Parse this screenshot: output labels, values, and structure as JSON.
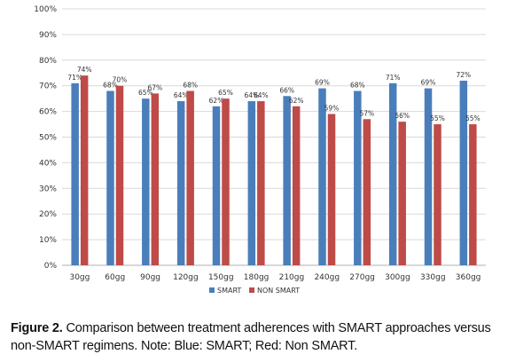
{
  "chart_data": {
    "type": "bar",
    "categories": [
      "30gg",
      "60gg",
      "90gg",
      "120gg",
      "150gg",
      "180gg",
      "210gg",
      "240gg",
      "270gg",
      "300gg",
      "330gg",
      "360gg"
    ],
    "series": [
      {
        "name": "SMART",
        "color": "#4a7ebb",
        "values": [
          71,
          68,
          65,
          64,
          62,
          64,
          66,
          69,
          68,
          71,
          69,
          72
        ],
        "labels": [
          "71%",
          "68%",
          "65%",
          "64%",
          "62%",
          "64%",
          "66%",
          "69%",
          "68%",
          "71%",
          "69%",
          "72%"
        ]
      },
      {
        "name": "NON SMART",
        "color": "#be4b48",
        "values": [
          74,
          70,
          67,
          68,
          65,
          64,
          62,
          59,
          57,
          56,
          55,
          55
        ],
        "labels": [
          "74%",
          "70%",
          "67%",
          "68%",
          "65%",
          "64%",
          "62%",
          "59%",
          "57%",
          "56%",
          "55%",
          "55%"
        ]
      }
    ],
    "ylim": [
      0,
      100
    ],
    "yticks": [
      0,
      10,
      20,
      30,
      40,
      50,
      60,
      70,
      80,
      90,
      100
    ],
    "ytick_labels": [
      "0%",
      "10%",
      "20%",
      "30%",
      "40%",
      "50%",
      "60%",
      "70%",
      "80%",
      "90%",
      "100%"
    ],
    "grid": true,
    "legend": "bottom-center"
  },
  "caption": {
    "label": "Figure 2.",
    "text": " Comparison between treatment adherences with SMART approaches versus non-SMART regimens. Note: Blue: SMART; Red: Non SMART."
  }
}
